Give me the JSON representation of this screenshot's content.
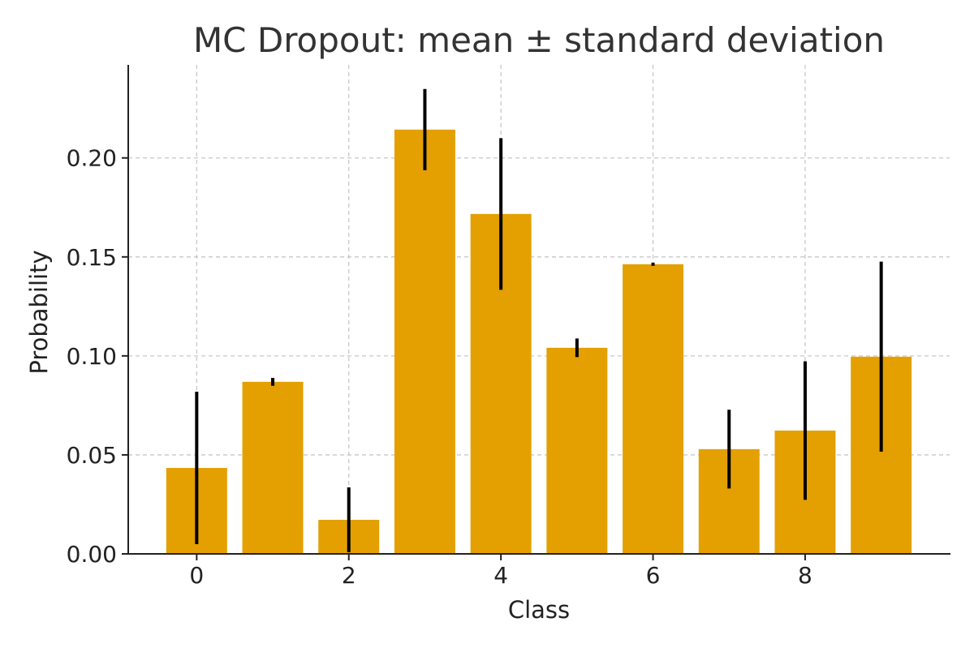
{
  "chart_data": {
    "type": "bar",
    "title": "MC Dropout: mean ± standard deviation",
    "xlabel": "Class",
    "ylabel": "Probability",
    "categories": [
      0,
      1,
      2,
      3,
      4,
      5,
      6,
      7,
      8,
      9
    ],
    "values": [
      0.0434,
      0.0869,
      0.0172,
      0.2143,
      0.1717,
      0.1041,
      0.1463,
      0.0529,
      0.0623,
      0.0996
    ],
    "std": [
      0.0385,
      0.002,
      0.0164,
      0.0205,
      0.0383,
      0.0047,
      0.0008,
      0.0199,
      0.035,
      0.048
    ],
    "xticks": [
      "0",
      "2",
      "4",
      "6",
      "8"
    ],
    "xtick_values": [
      0,
      2,
      4,
      6,
      8
    ],
    "yticks": [
      "0.00",
      "0.05",
      "0.10",
      "0.15",
      "0.20"
    ],
    "ytick_values": [
      0,
      0.05,
      0.1,
      0.15,
      0.2
    ],
    "xlim": [
      -0.9,
      9.9
    ],
    "ylim": [
      0,
      0.247
    ],
    "grid": true,
    "bar_color": "#E3A000",
    "errorbar_color": "#000000"
  }
}
